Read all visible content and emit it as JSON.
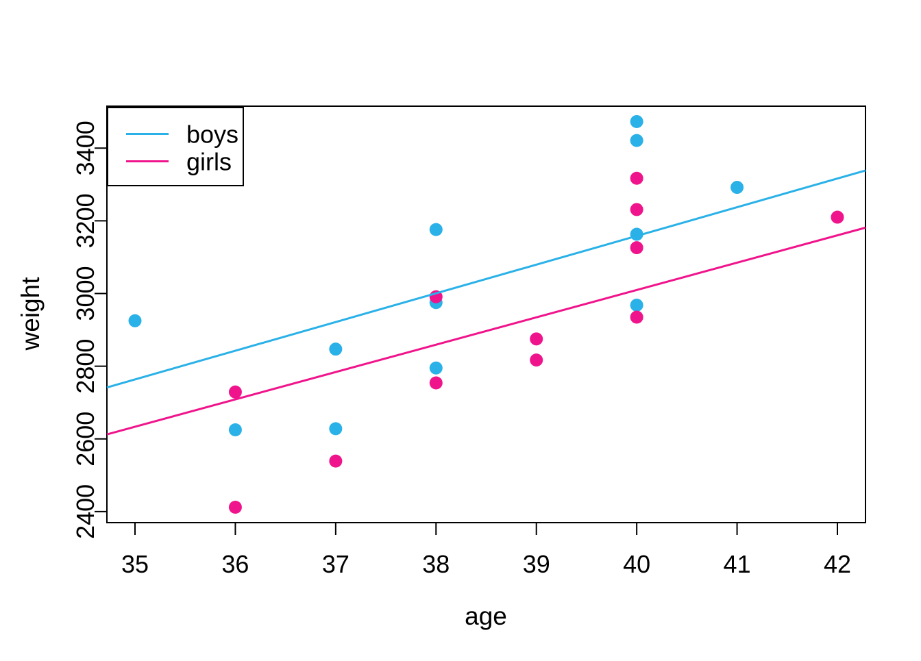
{
  "chart_data": {
    "type": "scatter",
    "title": "",
    "xlabel": "age",
    "ylabel": "weight",
    "xlim": [
      34.72,
      42.28
    ],
    "ylim": [
      2369.6,
      3515.4
    ],
    "x_ticks": [
      35,
      36,
      37,
      38,
      39,
      40,
      41,
      42
    ],
    "y_ticks": [
      2400,
      2600,
      2800,
      3000,
      3200,
      3400
    ],
    "grid": false,
    "legend": {
      "position": "topleft",
      "entries": [
        {
          "label": "boys",
          "color": "#29B1E8"
        },
        {
          "label": "girls",
          "color": "#F0148C"
        }
      ]
    },
    "series": [
      {
        "name": "boys",
        "color": "#29B1E8",
        "marker": "filled-circle",
        "x": [
          40,
          38,
          40,
          35,
          36,
          37,
          41,
          40,
          37,
          38,
          40,
          38
        ],
        "y": [
          2968,
          2795,
          3163,
          2925,
          2625,
          2847,
          3292,
          3473,
          2628,
          3176,
          3421,
          2975
        ],
        "regression_line": {
          "intercept": 0,
          "slope": 78.96
        }
      },
      {
        "name": "girls",
        "color": "#F0148C",
        "marker": "filled-circle",
        "x": [
          40,
          36,
          40,
          38,
          42,
          39,
          40,
          37,
          36,
          38,
          39,
          40
        ],
        "y": [
          3317,
          2729,
          2935,
          2754,
          3210,
          2817,
          3126,
          2539,
          2412,
          2991,
          2875,
          3231
        ],
        "regression_line": {
          "intercept": 0,
          "slope": 75.24
        }
      }
    ],
    "axis_color": "#000000"
  }
}
